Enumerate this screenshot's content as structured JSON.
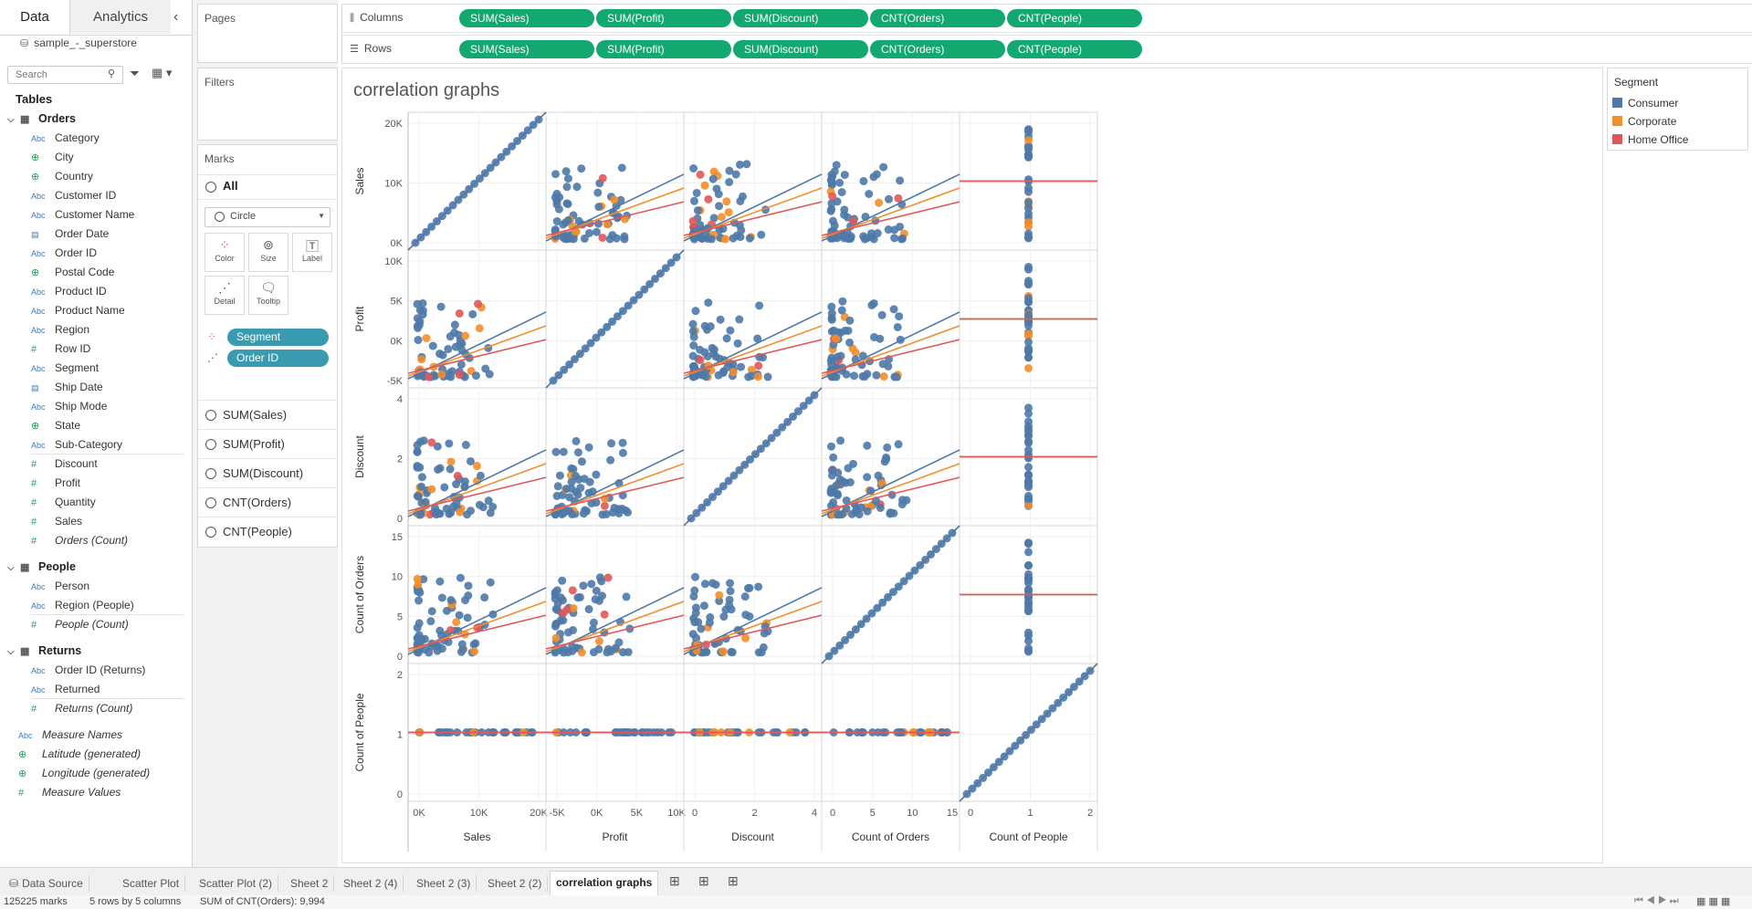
{
  "left_pane": {
    "tabs": [
      "Data",
      "Analytics"
    ],
    "datasource": "sample_-_superstore",
    "search_placeholder": "Search",
    "tables_title": "Tables",
    "orders": {
      "name": "Orders",
      "dimensions": [
        {
          "label": "Category",
          "type": "Abc"
        },
        {
          "label": "City",
          "type": "geo"
        },
        {
          "label": "Country",
          "type": "geo"
        },
        {
          "label": "Customer ID",
          "type": "Abc"
        },
        {
          "label": "Customer Name",
          "type": "Abc"
        },
        {
          "label": "Order Date",
          "type": "date"
        },
        {
          "label": "Order ID",
          "type": "Abc"
        },
        {
          "label": "Postal Code",
          "type": "geo"
        },
        {
          "label": "Product ID",
          "type": "Abc"
        },
        {
          "label": "Product Name",
          "type": "Abc"
        },
        {
          "label": "Region",
          "type": "Abc"
        },
        {
          "label": "Row ID",
          "type": "num"
        },
        {
          "label": "Segment",
          "type": "Abc"
        },
        {
          "label": "Ship Date",
          "type": "date"
        },
        {
          "label": "Ship Mode",
          "type": "Abc"
        },
        {
          "label": "State",
          "type": "geo"
        },
        {
          "label": "Sub-Category",
          "type": "Abc"
        }
      ],
      "measures": [
        "Discount",
        "Profit",
        "Quantity",
        "Sales",
        "Orders (Count)"
      ]
    },
    "people": {
      "name": "People",
      "dimensions": [
        "Person",
        "Region (People)"
      ],
      "measures": [
        "People (Count)"
      ]
    },
    "returns": {
      "name": "Returns",
      "dimensions": [
        "Order ID (Returns)",
        "Returned"
      ],
      "measures": [
        "Returns (Count)"
      ]
    },
    "extra": [
      {
        "label": "Measure Names",
        "type": "Abc"
      },
      {
        "label": "Latitude (generated)",
        "type": "geo"
      },
      {
        "label": "Longitude (generated)",
        "type": "geo"
      },
      {
        "label": "Measure Values",
        "type": "num"
      }
    ]
  },
  "cards": {
    "pages": "Pages",
    "filters": "Filters",
    "marks": "Marks",
    "marks_all": "All",
    "mark_type": "Circle",
    "buttons": [
      "Color",
      "Size",
      "Label",
      "Detail",
      "Tooltip"
    ],
    "mark_pills": [
      "Segment",
      "Order ID"
    ],
    "measures": [
      "SUM(Sales)",
      "SUM(Profit)",
      "SUM(Discount)",
      "CNT(Orders)",
      "CNT(People)"
    ]
  },
  "shelves": {
    "columns_label": "Columns",
    "rows_label": "Rows",
    "pills": [
      "SUM(Sales)",
      "SUM(Profit)",
      "SUM(Discount)",
      "CNT(Orders)",
      "CNT(People)"
    ]
  },
  "view": {
    "title": "correlation graphs"
  },
  "legend": {
    "title": "Segment",
    "items": [
      {
        "label": "Consumer",
        "color": "#4e79a7"
      },
      {
        "label": "Corporate",
        "color": "#f28e2b"
      },
      {
        "label": "Home Office",
        "color": "#e15759"
      }
    ]
  },
  "chart_data": {
    "type": "scatter",
    "title": "correlation graphs",
    "row_axis_labels": [
      "Sales",
      "Profit",
      "Discount",
      "Count of Orders",
      "Count of People"
    ],
    "col_axis_labels": [
      "Sales",
      "Profit",
      "Discount",
      "Count of Orders",
      "Count of People"
    ],
    "row_ticks": [
      [
        "20K",
        "10K",
        "0K"
      ],
      [
        "10K",
        "5K",
        "0K",
        "-5K"
      ],
      [
        "4",
        "2",
        "0"
      ],
      [
        "15",
        "10",
        "5",
        "0"
      ],
      [
        "2",
        "1",
        "0"
      ]
    ],
    "col_ticks": [
      [
        "0K",
        "10K",
        "20K"
      ],
      [
        "-5K",
        "0K",
        "5K",
        "10K"
      ],
      [
        "0",
        "2",
        "4"
      ],
      [
        "0",
        "5",
        "10",
        "15"
      ],
      [
        "0",
        "1",
        "2"
      ]
    ],
    "series": [
      {
        "name": "Consumer",
        "color": "#4e79a7"
      },
      {
        "name": "Corporate",
        "color": "#f28e2b"
      },
      {
        "name": "Home Office",
        "color": "#e15759"
      }
    ]
  },
  "sheet_tabs": [
    "Data Source",
    "Scatter Plot",
    "Scatter Plot (2)",
    "Sheet 2",
    "Sheet 2 (4)",
    "Sheet 2 (3)",
    "Sheet 2 (2)",
    "correlation graphs"
  ],
  "status": {
    "marks": "125225 marks",
    "dims": "5 rows by 5 columns",
    "sum": "SUM of CNT(Orders): 9,994"
  }
}
